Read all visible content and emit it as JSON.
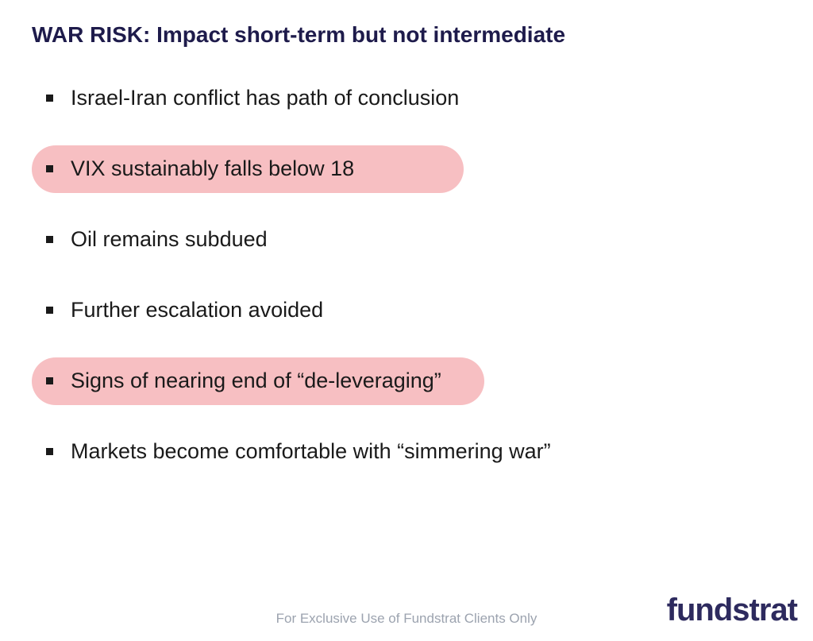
{
  "slide": {
    "title": "WAR RISK: Impact short-term but not intermediate",
    "title_color": "#1e1b4b",
    "title_fontsize": 28,
    "bullets": [
      {
        "text": "Israel-Iran conflict has path of conclusion",
        "highlighted": false
      },
      {
        "text": "VIX sustainably falls below 18",
        "highlighted": true,
        "highlight_width": 544
      },
      {
        "text": "Oil remains subdued",
        "highlighted": false
      },
      {
        "text": "Further escalation avoided",
        "highlighted": false
      },
      {
        "text": "Signs of nearing end of “de-leveraging”",
        "highlighted": true,
        "highlight_width": 570
      },
      {
        "text": "Markets become comfortable with “simmering war”",
        "highlighted": false
      }
    ],
    "bullet_fontsize": 27,
    "bullet_color": "#1a1a1a",
    "highlight_color": "#f7bfc2",
    "background_color": "#ffffff"
  },
  "footer": {
    "note": "For Exclusive Use of Fundstrat Clients Only",
    "note_color": "#9ca3af",
    "logo_text": "fundstrat",
    "logo_color": "#2d2a5e"
  }
}
